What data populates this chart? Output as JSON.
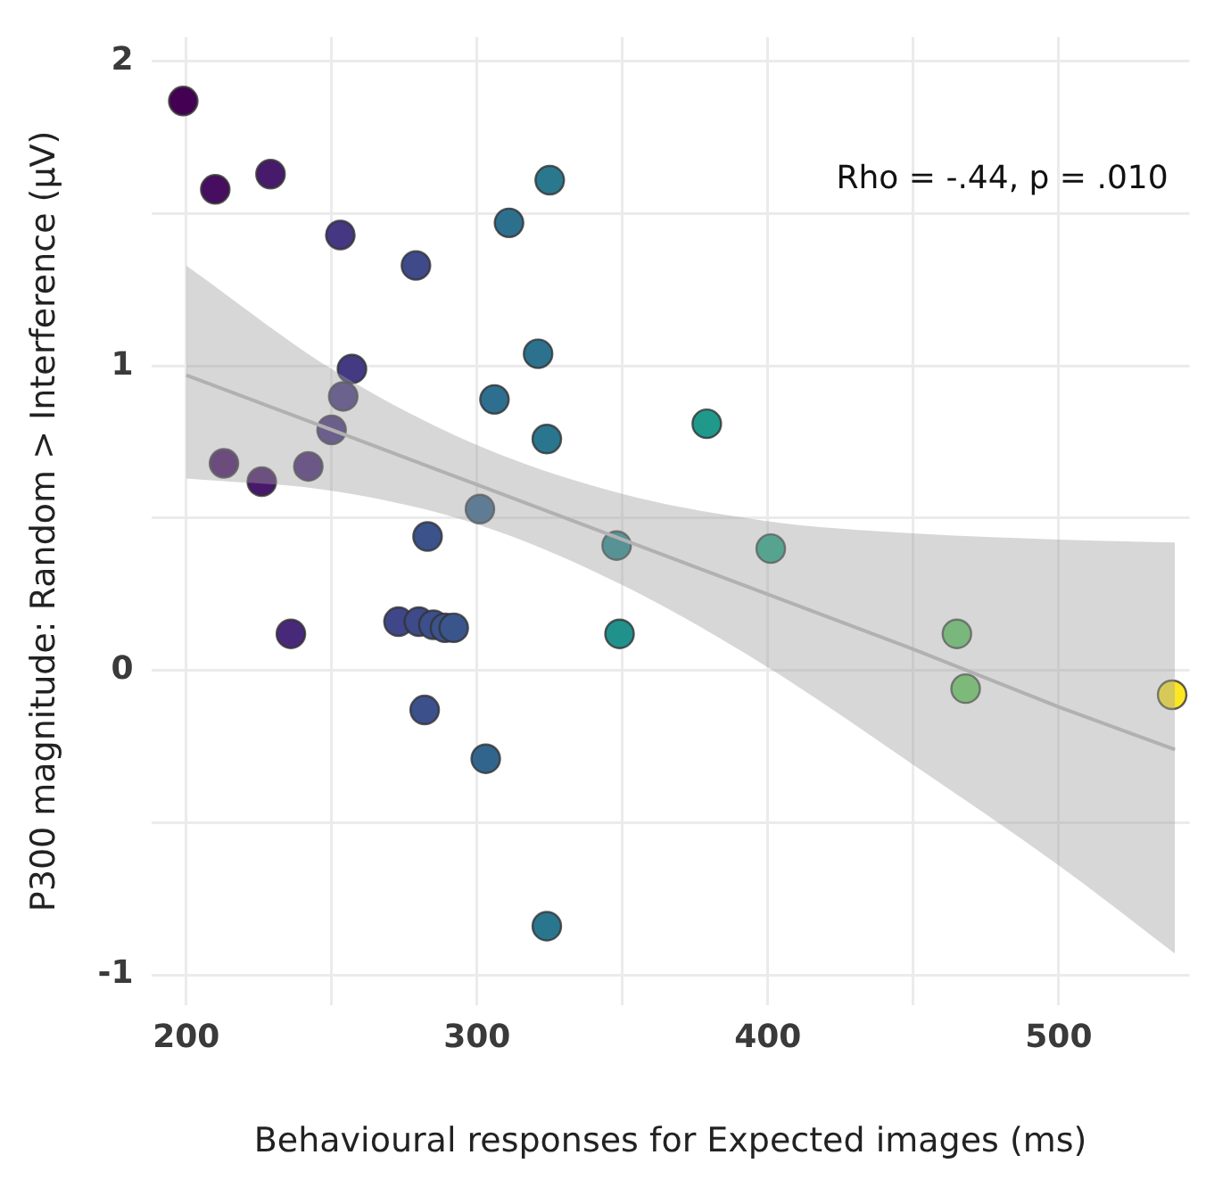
{
  "chart_data": {
    "type": "scatter",
    "xlabel": "Behavioural responses for Expected images (ms)",
    "ylabel": "P300 magnitude: Random > Interference (µV)",
    "annotations": [
      "Rho = -.44, p = .010"
    ],
    "xlim": [
      188,
      545
    ],
    "xticks": [
      200,
      {
        "value": 250,
        "label": null
      },
      300,
      {
        "value": 350,
        "label": null
      },
      400,
      {
        "value": 450,
        "label": null
      },
      500
    ],
    "ylim": [
      -1.1,
      2.08
    ],
    "yticks": [
      -1,
      {
        "value": -0.5,
        "label": null
      },
      0,
      {
        "value": 0.5,
        "label": null
      },
      1,
      {
        "value": 1.5,
        "label": null
      },
      2
    ],
    "grid": true,
    "legend": false,
    "marker": "circle",
    "series": [
      {
        "type": "line",
        "color": "#bdbdbd",
        "x": [
          200,
          250,
          300,
          350,
          400,
          450,
          500,
          540
        ],
        "values": [
          0.97,
          0.79,
          0.61,
          0.43,
          0.25,
          0.07,
          -0.12,
          -0.26
        ],
        "lower": [
          0.63,
          0.59,
          0.48,
          0.28,
          0.01,
          -0.31,
          -0.64,
          -0.93
        ],
        "upper": [
          1.33,
          0.99,
          0.74,
          0.58,
          0.49,
          0.45,
          0.43,
          0.42
        ],
        "marker": "none"
      },
      {
        "x": [
          199,
          210,
          229,
          253,
          279,
          311,
          325,
          321,
          257,
          254,
          250,
          306,
          324,
          379,
          213,
          242,
          226,
          283,
          301,
          348,
          401,
          236,
          273,
          280,
          285,
          289,
          292,
          349,
          465,
          468,
          539,
          282,
          303,
          324
        ],
        "values": [
          1.87,
          1.58,
          1.63,
          1.43,
          1.33,
          1.47,
          1.61,
          1.04,
          0.99,
          0.9,
          0.79,
          0.89,
          0.76,
          0.81,
          0.68,
          0.67,
          0.62,
          0.44,
          0.53,
          0.41,
          0.4,
          0.12,
          0.16,
          0.16,
          0.15,
          0.14,
          0.14,
          0.12,
          0.12,
          -0.06,
          -0.08,
          -0.13,
          -0.29,
          -0.84
        ],
        "colors": [
          "#440154",
          "#470d60",
          "#481a6c",
          "#453781",
          "#3e4a89",
          "#2d708e",
          "#2a788e",
          "#2c728e",
          "#443983",
          "#453781",
          "#46337e",
          "#2e6e8e",
          "#2a768e",
          "#1f9a8a",
          "#471063",
          "#482576",
          "#48186a",
          "#3b528b",
          "#33638d",
          "#23888e",
          "#22a884",
          "#482979",
          "#3f4788",
          "#3e4a89",
          "#3c4f8a",
          "#3b528b",
          "#39558c",
          "#21918c",
          "#5ec962",
          "#65cb5e",
          "#fde725",
          "#3c508b",
          "#32658e",
          "#2a768e"
        ]
      }
    ]
  }
}
